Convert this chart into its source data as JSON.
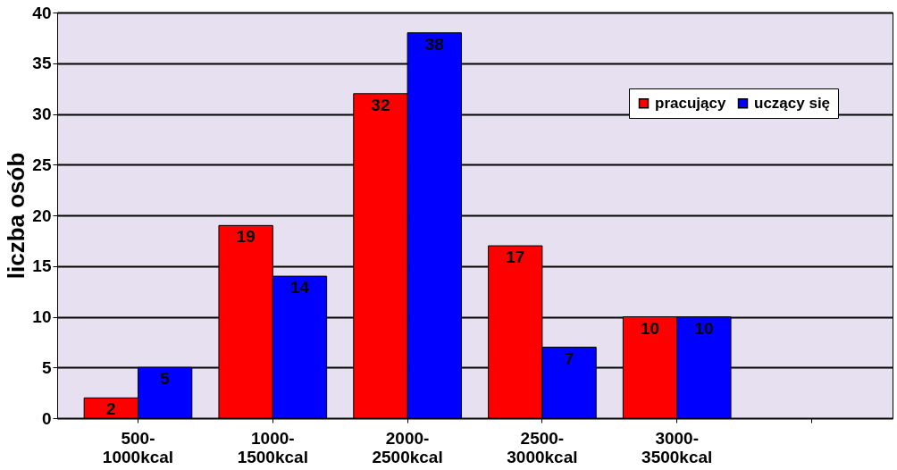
{
  "chart_data": {
    "type": "bar",
    "ylabel": "liczba osób",
    "categories": [
      "500-\n1000kcal",
      "1000-\n1500kcal",
      "2000-\n2500kcal",
      "2500-\n3000kcal",
      "3000-\n3500kcal",
      null
    ],
    "series": [
      {
        "name": "pracujący",
        "color": "#ff0000",
        "values": [
          2,
          19,
          32,
          17,
          10,
          null
        ]
      },
      {
        "name": "uczący się",
        "color": "#0000ff",
        "values": [
          5,
          14,
          38,
          7,
          10,
          null
        ]
      }
    ],
    "ylim": [
      0,
      40
    ],
    "yticks": [
      0,
      5,
      10,
      15,
      20,
      25,
      30,
      35,
      40
    ],
    "grid": "y",
    "legend": "top right",
    "data_labels": true
  }
}
